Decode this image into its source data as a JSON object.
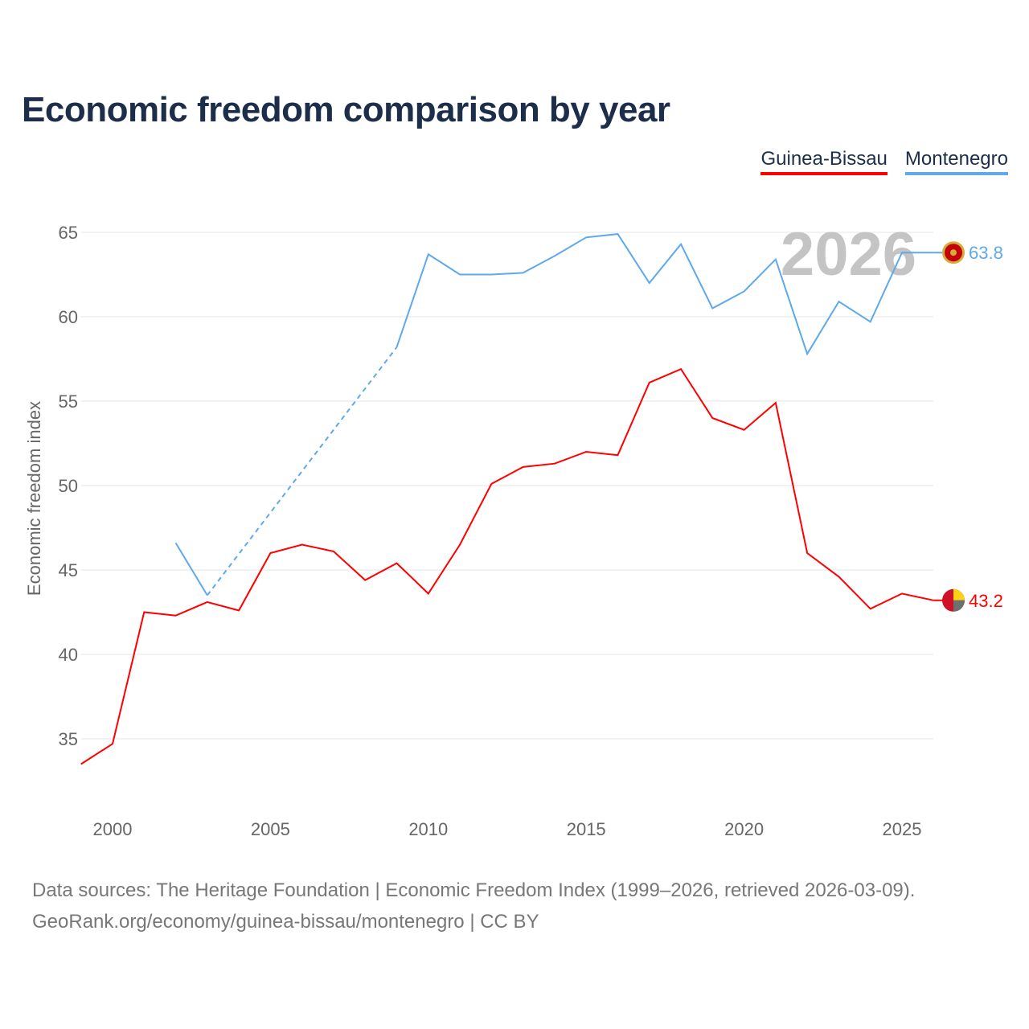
{
  "title": "Economic freedom comparison by year",
  "year_watermark": "2026",
  "sources": {
    "line1": "Data sources: The Heritage Foundation | Economic Freedom Index (1999–2026, retrieved 2026-03-09).",
    "line2": "GeoRank.org/economy/guinea-bissau/montenegro | CC BY"
  },
  "chart_data": {
    "type": "line",
    "title": "Economic freedom comparison by year",
    "xlabel": "",
    "ylabel": "Economic freedom index",
    "xlim": [
      1999,
      2026
    ],
    "ylim": [
      31,
      65.5
    ],
    "xticks": [
      2000,
      2005,
      2010,
      2015,
      2020,
      2025
    ],
    "yticks": [
      35,
      40,
      45,
      50,
      55,
      60,
      65
    ],
    "grid": true,
    "legend_position": "top-right",
    "x": [
      1999,
      2000,
      2001,
      2002,
      2003,
      2004,
      2005,
      2006,
      2007,
      2008,
      2009,
      2010,
      2011,
      2012,
      2013,
      2014,
      2015,
      2016,
      2017,
      2018,
      2019,
      2020,
      2021,
      2022,
      2023,
      2024,
      2025,
      2026
    ],
    "series": [
      {
        "name": "Guinea-Bissau",
        "color": "#ff0000",
        "end_label": "43.2",
        "values": [
          33.5,
          34.7,
          42.5,
          42.3,
          43.1,
          42.6,
          46.0,
          46.5,
          46.1,
          44.4,
          45.4,
          43.6,
          46.5,
          50.1,
          51.1,
          51.3,
          52.0,
          51.8,
          56.1,
          56.9,
          54.0,
          53.3,
          54.9,
          46.0,
          44.6,
          42.7,
          43.6,
          43.2
        ]
      },
      {
        "name": "Montenegro",
        "color": "#5ea8ec",
        "end_label": "63.8",
        "values": [
          null,
          null,
          null,
          46.6,
          43.5,
          null,
          null,
          null,
          null,
          null,
          58.2,
          63.7,
          62.5,
          62.5,
          62.6,
          63.6,
          64.7,
          64.9,
          62.0,
          64.3,
          60.5,
          61.5,
          63.4,
          57.8,
          60.9,
          59.7,
          63.8,
          63.8
        ]
      }
    ]
  }
}
